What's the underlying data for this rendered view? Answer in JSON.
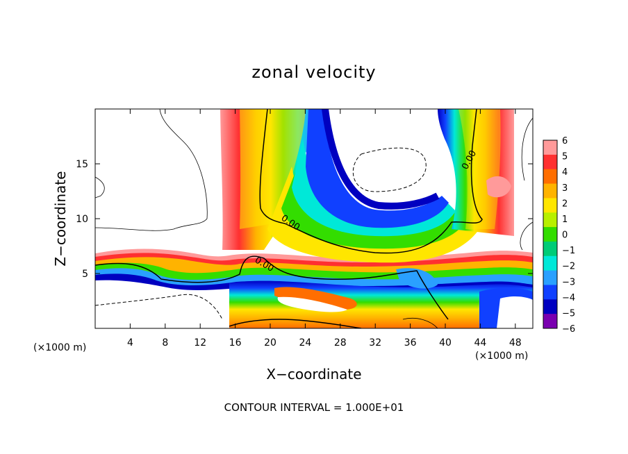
{
  "chart_data": {
    "type": "heatmap",
    "title": "zonal velocity",
    "xlabel": "X−coordinate",
    "ylabel": "Z−coordinate",
    "x_unit_left": "(×1000 m)",
    "x_unit_right": "(×1000 m)",
    "xlim": [
      0,
      50
    ],
    "ylim": [
      0,
      20
    ],
    "xticks": [
      4,
      8,
      12,
      16,
      20,
      24,
      28,
      32,
      36,
      40,
      44,
      48
    ],
    "yticks": [
      5,
      10,
      15
    ],
    "colorbar": {
      "levels": [
        6,
        5,
        4,
        3,
        2,
        1,
        0,
        -1,
        -2,
        -3,
        -4,
        -5,
        -6
      ],
      "labels": [
        "6",
        "5",
        "4",
        "3",
        "2",
        "1",
        "0",
        "−1",
        "−2",
        "−3",
        "−4",
        "−5",
        "−6"
      ],
      "colors": [
        "#ff9a9a",
        "#ff3030",
        "#ff6e00",
        "#ffb300",
        "#ffe600",
        "#b8f000",
        "#33dd00",
        "#00cc77",
        "#00e8d8",
        "#2aa0ff",
        "#1040ff",
        "#0000c0",
        "#7a00b0"
      ]
    },
    "contour_labels": [
      "0.00",
      "0.00",
      "0.00"
    ],
    "contour_interval_text": "CONTOUR INTERVAL = 1.000E+01"
  }
}
